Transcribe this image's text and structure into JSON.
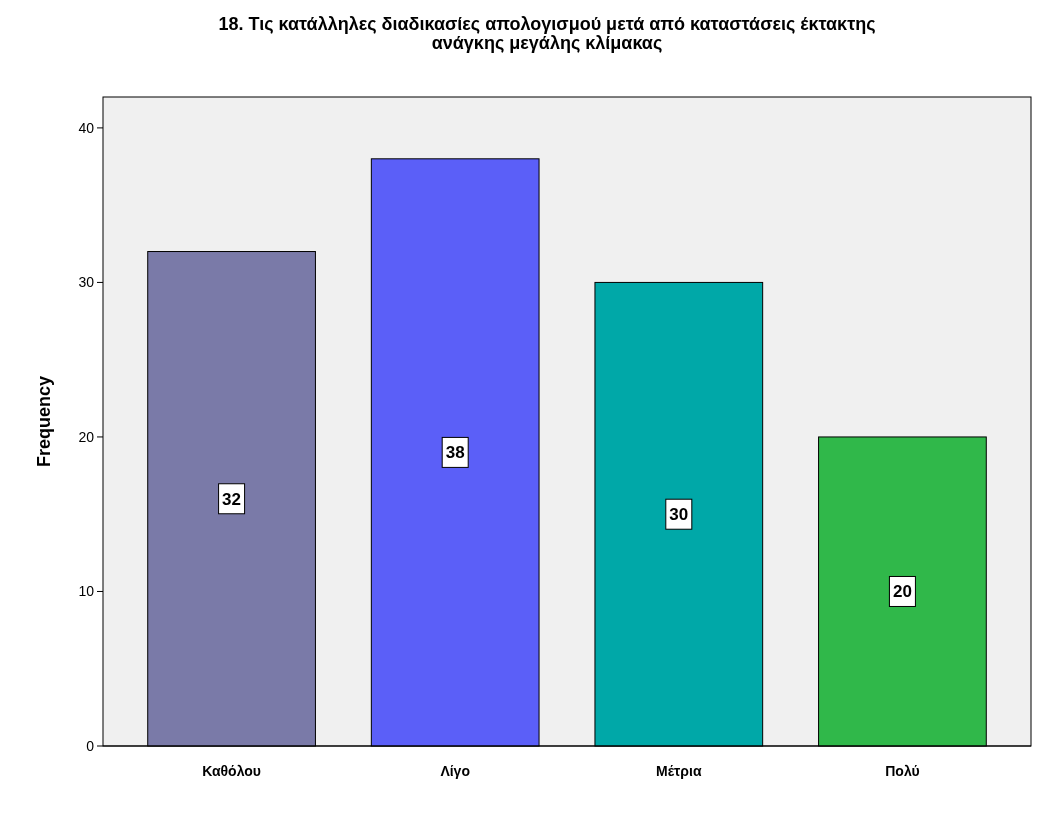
{
  "chart_data": {
    "type": "bar",
    "title": "18. Τις κατάλληλες διαδικασίες απολογισμού μετά από καταστάσεις έκτακτης ανάγκης μεγάλης κλίμακας",
    "ylabel": "Frequency",
    "categories": [
      "Καθόλου",
      "Λίγο",
      "Μέτρια",
      "Πολύ"
    ],
    "values": [
      32,
      38,
      30,
      20
    ],
    "colors": [
      "#7a7aa8",
      "#5b5ff8",
      "#00a8a8",
      "#30b84a"
    ],
    "ylim": [
      0,
      42
    ],
    "yticks": [
      0,
      10,
      20,
      30,
      40
    ],
    "data_labels": true
  }
}
